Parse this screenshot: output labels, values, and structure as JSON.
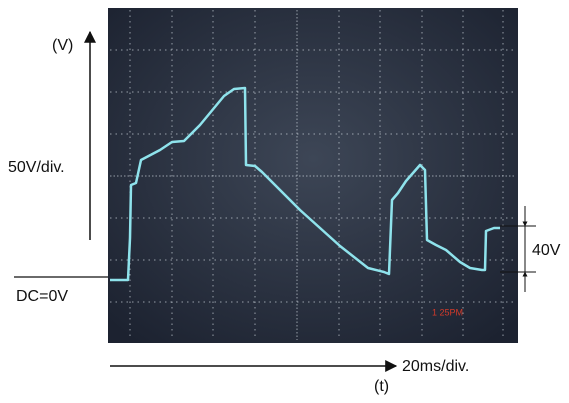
{
  "axis": {
    "voltage_unit": "(V)",
    "voltage_scale": "50V/div.",
    "dc_level": "DC=0V",
    "time_scale": "20ms/div.",
    "time_unit": "(t)"
  },
  "annotation": {
    "step": "40V"
  },
  "screen": {
    "timestamp": "1 25PM"
  }
}
